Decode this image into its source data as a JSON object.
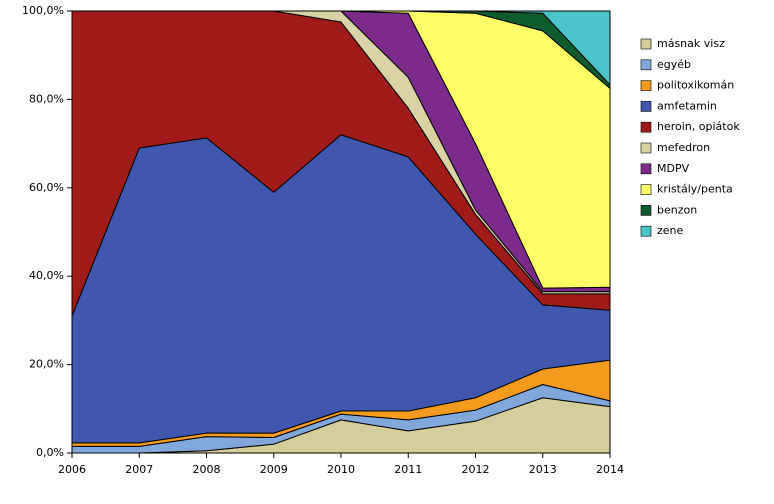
{
  "chart_data": {
    "type": "stacked-area",
    "categories": [
      "2006",
      "2007",
      "2008",
      "2009",
      "2010",
      "2011",
      "2012",
      "2013",
      "2014"
    ],
    "series": [
      {
        "name": "másnak visz",
        "color": "#d5cd9b",
        "values": [
          0,
          0,
          0.5,
          2,
          7.5,
          5,
          7.2,
          12.5,
          10.5
        ]
      },
      {
        "name": "egyéb",
        "color": "#80a8da",
        "values": [
          1.5,
          1.5,
          3.2,
          1.5,
          1.3,
          2.5,
          2.5,
          3,
          1.3
        ]
      },
      {
        "name": "politoxikomán",
        "color": "#f59b1d",
        "values": [
          0.8,
          0.8,
          0.8,
          1,
          0.7,
          2,
          2.8,
          3.5,
          9.2
        ]
      },
      {
        "name": "amfetamin",
        "color": "#3f58ad",
        "values": [
          28.7,
          66.7,
          66.8,
          54.5,
          62.5,
          57.5,
          37,
          14.5,
          11.3
        ]
      },
      {
        "name": "heroin, opiátok",
        "color": "#a11a1a",
        "values": [
          69,
          31,
          28.7,
          41,
          25.5,
          11,
          4.5,
          2.5,
          3.7
        ]
      },
      {
        "name": "mefedron",
        "color": "#d9d2a4",
        "values": [
          0,
          0,
          0,
          0,
          2.5,
          7,
          1,
          0.5,
          0.5
        ]
      },
      {
        "name": "MDPV",
        "color": "#7d2b8a",
        "values": [
          0,
          0,
          0,
          0,
          0,
          14.5,
          15,
          0.8,
          1
        ]
      },
      {
        "name": "kristály/penta",
        "color": "#ffff66",
        "values": [
          0,
          0,
          0,
          0,
          0,
          0.5,
          29.5,
          58.2,
          45
        ]
      },
      {
        "name": "benzon",
        "color": "#0d5c2c",
        "values": [
          0,
          0,
          0,
          0,
          0,
          0,
          0.5,
          4,
          0.8
        ]
      },
      {
        "name": "zene",
        "color": "#4ac4c8",
        "values": [
          0,
          0,
          0,
          0,
          0,
          0,
          0,
          0.5,
          16.7
        ]
      }
    ],
    "ylim": [
      0,
      100
    ],
    "yticks": [
      {
        "value": 0,
        "label": "0,0%"
      },
      {
        "value": 20,
        "label": "20,0%"
      },
      {
        "value": 40,
        "label": "40,0%"
      },
      {
        "value": 60,
        "label": "60,0%"
      },
      {
        "value": 80,
        "label": "80,0%"
      },
      {
        "value": 100,
        "label": "100,0%"
      }
    ]
  }
}
